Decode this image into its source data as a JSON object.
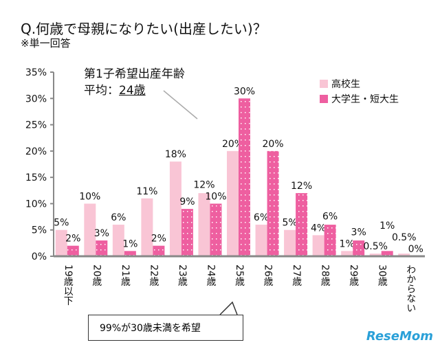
{
  "title": "Q.何歳で母親になりたい(出産したい)？",
  "subtitle": "※単一回答",
  "annotation": {
    "line1": "第1子希望出産年齢",
    "line2_prefix": "平均：",
    "line2_value": "24歳"
  },
  "callout": "99%が30歳未満を希望",
  "logo": "ReseMom",
  "chart_data": {
    "type": "bar",
    "categories": [
      "19歳以下",
      "20歳",
      "21歳",
      "22歳",
      "23歳",
      "24歳",
      "25歳",
      "26歳",
      "27歳",
      "28歳",
      "29歳",
      "30歳",
      "わからない"
    ],
    "series": [
      {
        "name": "高校生",
        "values": [
          5,
          10,
          6,
          11,
          18,
          12,
          20,
          6,
          5,
          4,
          1,
          0.5,
          0.5
        ],
        "labels": [
          "5%",
          "10%",
          "6%",
          "11%",
          "18%",
          "12%",
          "20%",
          "6%",
          "5%",
          "4%",
          "1%",
          "0.5%",
          "0.5%"
        ],
        "color": "#f9c5d5"
      },
      {
        "name": "大学生・短大生",
        "values": [
          2,
          3,
          1,
          2,
          9,
          10,
          30,
          20,
          12,
          6,
          3,
          1,
          0
        ],
        "labels": [
          "2%",
          "3%",
          "1%",
          "2%",
          "9%",
          "10%",
          "30%",
          "20%",
          "12%",
          "6%",
          "3%",
          "1%",
          "0%"
        ],
        "color": "#ee5fa0"
      }
    ],
    "yticks": [
      "0%",
      "5%",
      "10%",
      "15%",
      "20%",
      "25%",
      "30%",
      "35%"
    ],
    "ylim": [
      0,
      35
    ],
    "legend": "top-right",
    "grid": false
  }
}
